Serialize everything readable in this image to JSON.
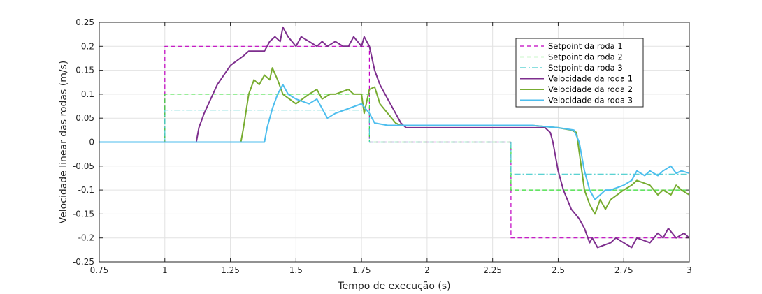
{
  "chart_data": {
    "type": "line",
    "title": "",
    "xlabel": "Tempo de execução (s)",
    "ylabel": "Velocidade linear das rodas (m/s)",
    "xlim": [
      0.75,
      3
    ],
    "ylim": [
      -0.25,
      0.25
    ],
    "xticks": [
      0.75,
      1,
      1.25,
      1.5,
      1.75,
      2,
      2.25,
      2.5,
      2.75,
      3
    ],
    "xtick_labels": [
      "0.75",
      "1",
      "1.25",
      "1.5",
      "1.75",
      "2",
      "2.25",
      "2.5",
      "2.75",
      "3"
    ],
    "yticks": [
      0.25,
      0.2,
      0.15,
      0.1,
      0.05,
      0,
      -0.05,
      -0.1,
      -0.15,
      -0.2,
      -0.25
    ],
    "ytick_labels": [
      "0.25",
      "0.2",
      "0.15",
      "0.1",
      "0.05",
      "0",
      "-0.05",
      "-0.1",
      "-0.15",
      "-0.2",
      "-0.25"
    ],
    "grid": true,
    "legend_position": "top-right",
    "series": [
      {
        "name": "Setpoint da roda 1",
        "color": "#c000c0",
        "dash": "dashed",
        "x": [
          0.75,
          1.0,
          1.0,
          1.78,
          1.78,
          2.32,
          2.32,
          3.0
        ],
        "y": [
          0,
          0,
          0.2,
          0.2,
          0,
          0,
          -0.2,
          -0.2
        ]
      },
      {
        "name": "Setpoint da roda 2",
        "color": "#33dd33",
        "dash": "dashed",
        "x": [
          0.75,
          1.0,
          1.0,
          1.78,
          1.78,
          2.32,
          2.32,
          3.0
        ],
        "y": [
          0,
          0,
          0.1,
          0.1,
          0,
          0,
          -0.1,
          -0.1
        ]
      },
      {
        "name": "Setpoint da roda 3",
        "color": "#44cccc",
        "dash": "dashdot",
        "x": [
          0.75,
          1.0,
          1.0,
          1.78,
          1.78,
          2.32,
          2.32,
          3.0
        ],
        "y": [
          0,
          0,
          0.0667,
          0.0667,
          0,
          0,
          -0.0667,
          -0.0667
        ]
      },
      {
        "name": "Velocidade da roda 1",
        "color": "#7e2f8e",
        "dash": "solid",
        "x": [
          0.75,
          1.12,
          1.13,
          1.15,
          1.2,
          1.25,
          1.3,
          1.32,
          1.35,
          1.38,
          1.4,
          1.42,
          1.44,
          1.45,
          1.47,
          1.5,
          1.52,
          1.55,
          1.58,
          1.6,
          1.62,
          1.65,
          1.68,
          1.7,
          1.72,
          1.75,
          1.76,
          1.78,
          1.8,
          1.82,
          1.85,
          1.88,
          1.9,
          1.92,
          2.0,
          2.1,
          2.2,
          2.3,
          2.4,
          2.45,
          2.47,
          2.48,
          2.5,
          2.52,
          2.55,
          2.58,
          2.6,
          2.62,
          2.63,
          2.65,
          2.7,
          2.72,
          2.75,
          2.78,
          2.8,
          2.85,
          2.88,
          2.9,
          2.92,
          2.95,
          2.98,
          3.0
        ],
        "y": [
          0,
          0,
          0.03,
          0.06,
          0.12,
          0.16,
          0.18,
          0.19,
          0.19,
          0.19,
          0.21,
          0.22,
          0.21,
          0.24,
          0.22,
          0.2,
          0.22,
          0.21,
          0.2,
          0.21,
          0.2,
          0.21,
          0.2,
          0.2,
          0.22,
          0.2,
          0.22,
          0.2,
          0.15,
          0.12,
          0.09,
          0.06,
          0.04,
          0.03,
          0.03,
          0.03,
          0.03,
          0.03,
          0.03,
          0.03,
          0.02,
          0.0,
          -0.06,
          -0.1,
          -0.14,
          -0.16,
          -0.18,
          -0.21,
          -0.2,
          -0.22,
          -0.21,
          -0.2,
          -0.21,
          -0.22,
          -0.2,
          -0.21,
          -0.19,
          -0.2,
          -0.18,
          -0.2,
          -0.19,
          -0.2
        ]
      },
      {
        "name": "Velocidade da roda 2",
        "color": "#77ac30",
        "dash": "solid",
        "x": [
          0.75,
          1.29,
          1.3,
          1.32,
          1.34,
          1.36,
          1.38,
          1.4,
          1.41,
          1.43,
          1.45,
          1.5,
          1.55,
          1.58,
          1.6,
          1.63,
          1.65,
          1.7,
          1.72,
          1.75,
          1.76,
          1.78,
          1.8,
          1.82,
          1.85,
          1.88,
          1.9,
          2.0,
          2.1,
          2.2,
          2.3,
          2.4,
          2.5,
          2.55,
          2.57,
          2.58,
          2.6,
          2.62,
          2.64,
          2.66,
          2.68,
          2.7,
          2.75,
          2.78,
          2.8,
          2.85,
          2.88,
          2.9,
          2.93,
          2.95,
          2.97,
          3.0
        ],
        "y": [
          0,
          0,
          0.03,
          0.1,
          0.13,
          0.12,
          0.14,
          0.13,
          0.155,
          0.13,
          0.1,
          0.08,
          0.1,
          0.11,
          0.09,
          0.1,
          0.1,
          0.11,
          0.1,
          0.1,
          0.06,
          0.11,
          0.115,
          0.08,
          0.06,
          0.04,
          0.035,
          0.035,
          0.035,
          0.035,
          0.035,
          0.035,
          0.03,
          0.025,
          0.02,
          -0.02,
          -0.1,
          -0.13,
          -0.15,
          -0.12,
          -0.14,
          -0.12,
          -0.1,
          -0.09,
          -0.08,
          -0.09,
          -0.11,
          -0.1,
          -0.11,
          -0.09,
          -0.1,
          -0.11
        ]
      },
      {
        "name": "Velocidade da roda 3",
        "color": "#4dbeee",
        "dash": "solid",
        "x": [
          0.75,
          1.38,
          1.39,
          1.41,
          1.43,
          1.45,
          1.47,
          1.5,
          1.55,
          1.58,
          1.6,
          1.62,
          1.65,
          1.7,
          1.75,
          1.78,
          1.8,
          1.85,
          1.88,
          1.9,
          2.0,
          2.1,
          2.2,
          2.3,
          2.4,
          2.5,
          2.56,
          2.58,
          2.6,
          2.62,
          2.64,
          2.66,
          2.68,
          2.7,
          2.75,
          2.78,
          2.8,
          2.83,
          2.85,
          2.88,
          2.9,
          2.93,
          2.95,
          2.97,
          3.0
        ],
        "y": [
          0,
          0,
          0.03,
          0.07,
          0.1,
          0.12,
          0.1,
          0.09,
          0.08,
          0.09,
          0.07,
          0.05,
          0.06,
          0.07,
          0.08,
          0.06,
          0.04,
          0.035,
          0.035,
          0.035,
          0.035,
          0.035,
          0.035,
          0.035,
          0.035,
          0.03,
          0.025,
          0.0,
          -0.06,
          -0.1,
          -0.12,
          -0.11,
          -0.1,
          -0.1,
          -0.09,
          -0.08,
          -0.06,
          -0.07,
          -0.06,
          -0.07,
          -0.06,
          -0.05,
          -0.065,
          -0.06,
          -0.065
        ]
      }
    ]
  }
}
